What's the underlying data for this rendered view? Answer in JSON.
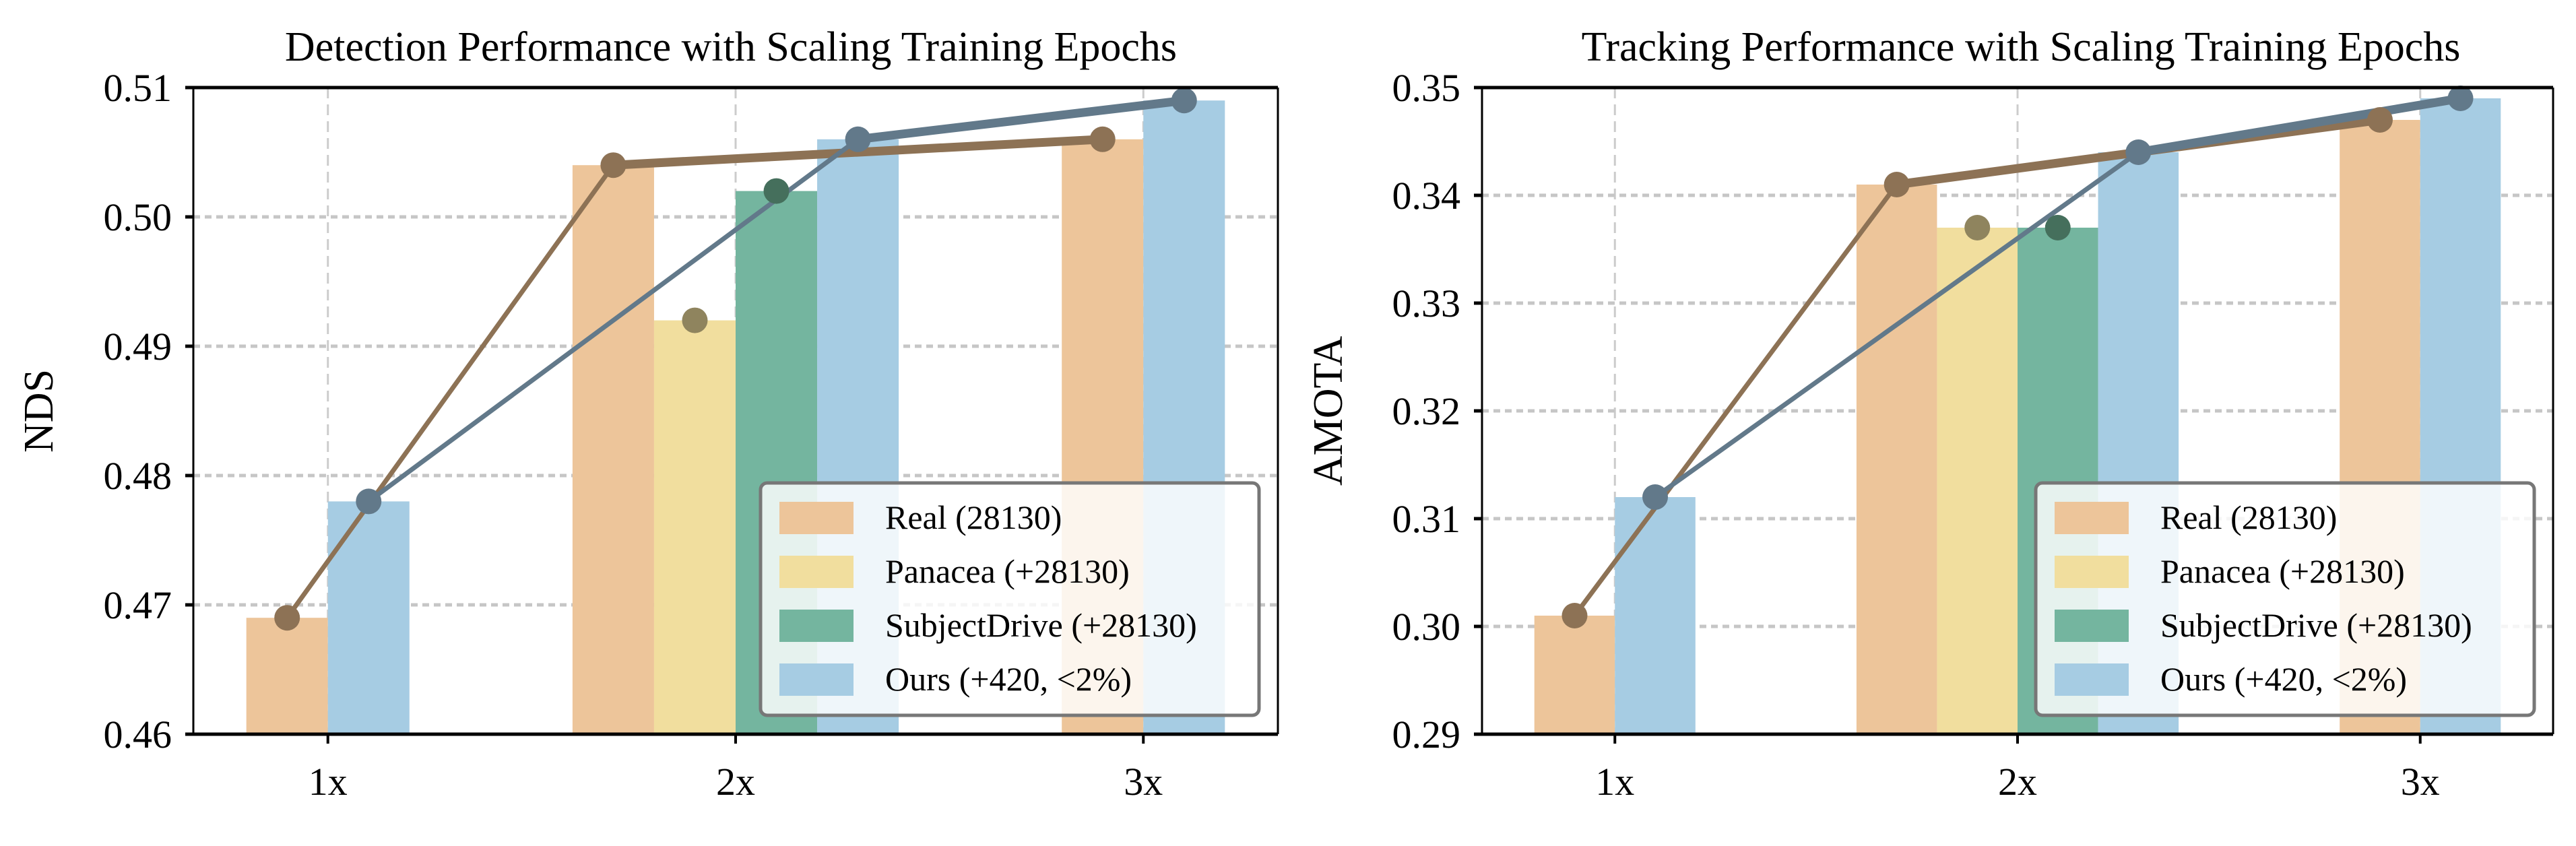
{
  "colors": {
    "real": "#EDC59A",
    "panacea": "#F1DE9E",
    "subjectdrive": "#74B59F",
    "ours": "#A6CCE3",
    "real_line": "#8D7255",
    "ours_line": "#62798A",
    "panacea_marker": "#8F845E",
    "subjectdrive_marker": "#456F5C"
  },
  "chart_data": [
    {
      "type": "bar",
      "title": "Detection Performance with Scaling Training Epochs",
      "xlabel": "",
      "ylabel": "NDS",
      "categories": [
        "1x",
        "2x",
        "3x"
      ],
      "ylim": [
        0.46,
        0.51
      ],
      "yticks": [
        "0.46",
        "0.47",
        "0.48",
        "0.49",
        "0.50",
        "0.51"
      ],
      "yticks_values": [
        0.46,
        0.47,
        0.48,
        0.49,
        0.5,
        0.51
      ],
      "grid": true,
      "legend_position": "bottom-right",
      "series": [
        {
          "name": "Real (28130)",
          "key": "real",
          "values": [
            0.469,
            0.504,
            0.506
          ]
        },
        {
          "name": "Panacea (+28130)",
          "key": "panacea",
          "values": [
            null,
            0.492,
            null
          ]
        },
        {
          "name": "SubjectDrive (+28130)",
          "key": "subjectdrive",
          "values": [
            null,
            0.502,
            null
          ]
        },
        {
          "name": "Ours (+420, <2%)",
          "key": "ours",
          "values": [
            0.478,
            0.506,
            0.509
          ]
        }
      ],
      "lines": [
        {
          "series": "real",
          "style": "line+markers"
        },
        {
          "series": "ours",
          "style": "line+markers"
        }
      ]
    },
    {
      "type": "bar",
      "title": "Tracking Performance with Scaling Training Epochs",
      "xlabel": "",
      "ylabel": "AMOTA",
      "categories": [
        "1x",
        "2x",
        "3x"
      ],
      "ylim": [
        0.29,
        0.35
      ],
      "yticks": [
        "0.29",
        "0.30",
        "0.31",
        "0.32",
        "0.33",
        "0.34",
        "0.35"
      ],
      "yticks_values": [
        0.29,
        0.3,
        0.31,
        0.32,
        0.33,
        0.34,
        0.35
      ],
      "grid": true,
      "legend_position": "bottom-right",
      "series": [
        {
          "name": "Real (28130)",
          "key": "real",
          "values": [
            0.301,
            0.341,
            0.347
          ]
        },
        {
          "name": "Panacea (+28130)",
          "key": "panacea",
          "values": [
            null,
            0.337,
            null
          ]
        },
        {
          "name": "SubjectDrive (+28130)",
          "key": "subjectdrive",
          "values": [
            null,
            0.337,
            null
          ]
        },
        {
          "name": "Ours (+420, <2%)",
          "key": "ours",
          "values": [
            0.312,
            0.344,
            0.349
          ]
        }
      ],
      "lines": [
        {
          "series": "real",
          "style": "line+markers"
        },
        {
          "series": "ours",
          "style": "line+markers"
        }
      ]
    }
  ]
}
